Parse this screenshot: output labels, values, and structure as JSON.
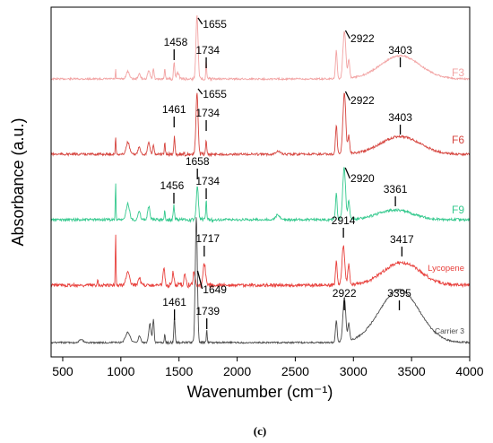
{
  "chart_data": {
    "type": "line",
    "xlabel": "Wavenumber (cm⁻¹)",
    "ylabel": "Absorbance (a.u.)",
    "xlim": [
      400,
      4000
    ],
    "xticks": [
      500,
      1000,
      1500,
      2000,
      2500,
      3000,
      3500,
      4000
    ],
    "yticks_shown": false,
    "grid": false,
    "caption": "(c)",
    "series": [
      {
        "name": "F3",
        "color": "#f2a3a3",
        "annotations": [
          "1458",
          "1655",
          "1734",
          "2922",
          "3403"
        ]
      },
      {
        "name": "F6",
        "color": "#d6453f",
        "annotations": [
          "1461",
          "1655",
          "1734",
          "2922",
          "3403"
        ]
      },
      {
        "name": "F9",
        "color": "#35c98e",
        "annotations": [
          "1456",
          "1658",
          "1734",
          "2920",
          "3361"
        ]
      },
      {
        "name": "Lycopene",
        "color": "#e8403c",
        "annotations": [
          "1717",
          "1649",
          "2914",
          "3417"
        ]
      },
      {
        "name": "Carrier 3",
        "color": "#4a4a4a",
        "annotations": [
          "1461",
          "1739",
          "2922",
          "3395"
        ]
      }
    ]
  }
}
